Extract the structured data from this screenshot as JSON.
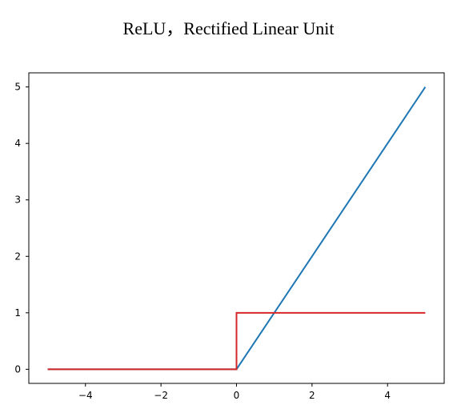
{
  "chart_data": {
    "type": "line",
    "title": "ReLU，Rectified Linear Unit",
    "xlabel": "",
    "ylabel": "",
    "xlim": [
      -5.5,
      5.5
    ],
    "ylim": [
      -0.25,
      5.25
    ],
    "xticks": [
      -4,
      -2,
      0,
      2,
      4
    ],
    "xtick_labels": [
      "−4",
      "−2",
      "0",
      "2",
      "4"
    ],
    "yticks": [
      0,
      1,
      2,
      3,
      4,
      5
    ],
    "ytick_labels": [
      "0",
      "1",
      "2",
      "3",
      "4",
      "5"
    ],
    "grid": false,
    "series": [
      {
        "color": "#1f77b4",
        "x": [
          -5,
          0,
          5
        ],
        "y": [
          0,
          0,
          5
        ]
      },
      {
        "color": "#d62728",
        "x": [
          -5,
          0,
          0,
          5
        ],
        "y": [
          0,
          0,
          1,
          1
        ]
      }
    ]
  }
}
